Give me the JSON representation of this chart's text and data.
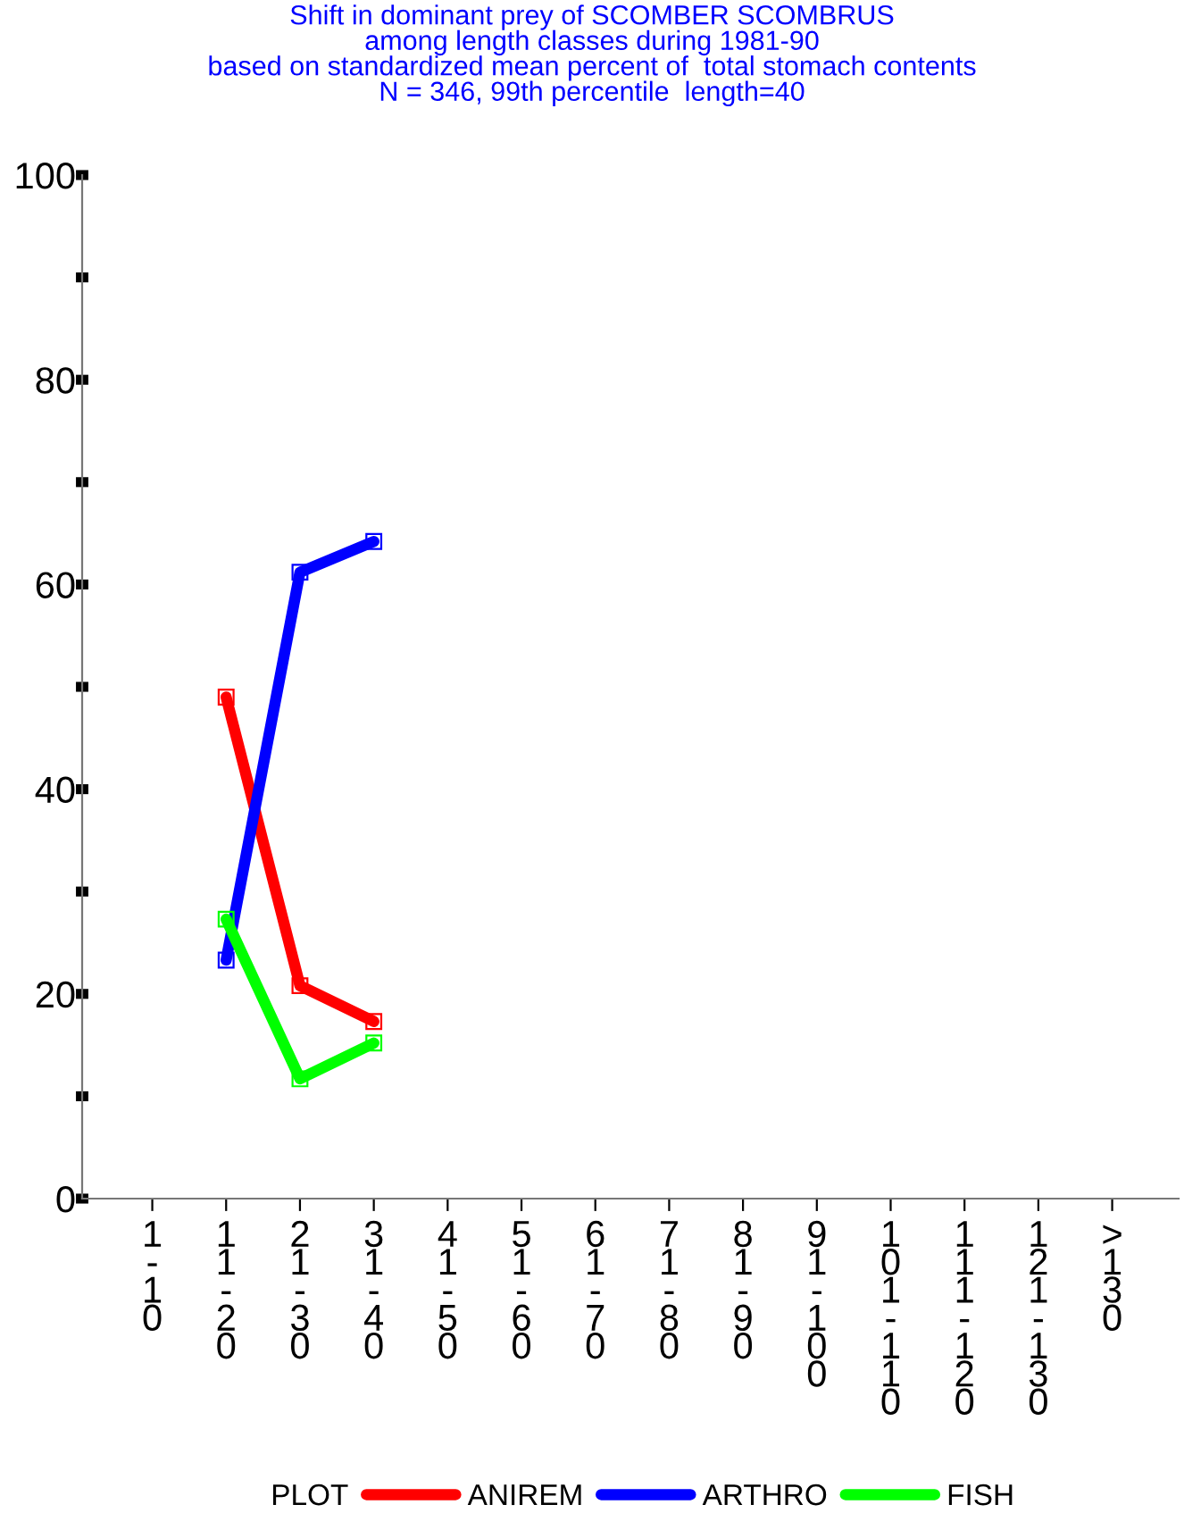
{
  "chart_data": {
    "type": "line",
    "title": "Shift in dominant prey of SCOMBER SCOMBRUS\namong length classes during 1981-90\nbased on standardized mean percent of  total stomach contents\nN = 346, 99th percentile  length=40",
    "categories": [
      "1-10",
      "11-20",
      "21-30",
      "31-40",
      "41-50",
      "51-60",
      "61-70",
      "71-80",
      "81-90",
      "91-100",
      "101-110",
      "111-120",
      "121-130",
      ">130"
    ],
    "series": [
      {
        "name": "ANIREM",
        "color": "#ff0000",
        "values": [
          null,
          49,
          20.8,
          17.3,
          null,
          null,
          null,
          null,
          null,
          null,
          null,
          null,
          null,
          null
        ]
      },
      {
        "name": "ARTHRO",
        "color": "#0000ff",
        "values": [
          null,
          23.3,
          61.2,
          64.2,
          null,
          null,
          null,
          null,
          null,
          null,
          null,
          null,
          null,
          null
        ]
      },
      {
        "name": "FISH",
        "color": "#00ff00",
        "values": [
          null,
          27.3,
          11.7,
          15.2,
          null,
          null,
          null,
          null,
          null,
          null,
          null,
          null,
          null,
          null
        ]
      }
    ],
    "legend_title": "PLOT",
    "ylim": [
      0,
      100
    ],
    "yticks": [
      0,
      {
        "value": 10,
        "label": null
      },
      20,
      {
        "value": 30,
        "label": null
      },
      40,
      {
        "value": 50,
        "label": null
      },
      60,
      {
        "value": 70,
        "label": null
      },
      80,
      {
        "value": 90,
        "label": null
      },
      100
    ],
    "grid": false,
    "legend": "bottom",
    "marker": "square",
    "line_style": "solid"
  }
}
